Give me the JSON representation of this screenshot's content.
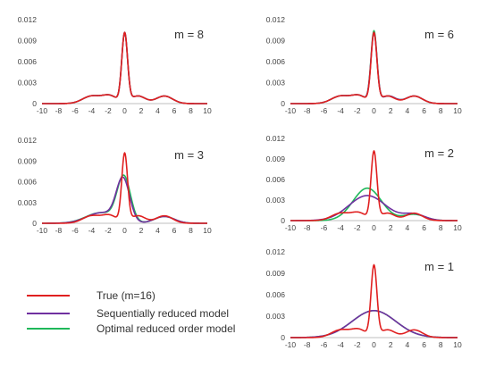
{
  "colors": {
    "true": "#e02020",
    "sequential": "#7030a0",
    "optimal": "#1fb85a",
    "axis": "#bfbfbf"
  },
  "legend": [
    {
      "key": "true",
      "label": "True (m=16)"
    },
    {
      "key": "sequential",
      "label": "Sequentially reduced model"
    },
    {
      "key": "optimal",
      "label": "Optimal reduced order model"
    }
  ],
  "chart_data": [
    {
      "type": "line",
      "title": "m = 8",
      "xlim": [
        -10,
        10
      ],
      "ylim": [
        0,
        0.012
      ],
      "xticks": [
        "-10",
        "-8",
        "-6",
        "-4",
        "-2",
        "0",
        "2",
        "4",
        "6",
        "8",
        "10"
      ],
      "yticks": [
        "0",
        "0.003",
        "0.006",
        "0.009",
        "0.012"
      ],
      "series": [
        {
          "key": "true",
          "name": "True (m=16)",
          "components": [
            [
              0.35,
              0.0,
              0.35
            ],
            [
              0.12,
              -4.0,
              1.1
            ],
            [
              0.11,
              4.8,
              1.0
            ],
            [
              0.1,
              -1.8,
              0.9
            ],
            [
              0.1,
              1.6,
              0.9
            ]
          ]
        },
        {
          "key": "sequential",
          "name": "Sequentially reduced model",
          "components": [
            [
              0.35,
              0.0,
              0.35
            ],
            [
              0.12,
              -4.0,
              1.1
            ],
            [
              0.11,
              4.8,
              1.0
            ],
            [
              0.1,
              -1.8,
              0.9
            ],
            [
              0.1,
              1.6,
              0.9
            ]
          ]
        },
        {
          "key": "optimal",
          "name": "Optimal reduced order model",
          "components": [
            [
              0.35,
              0.0,
              0.35
            ],
            [
              0.12,
              -4.0,
              1.1
            ],
            [
              0.11,
              4.8,
              1.0
            ],
            [
              0.1,
              -1.8,
              0.9
            ],
            [
              0.1,
              1.6,
              0.9
            ]
          ]
        }
      ]
    },
    {
      "type": "line",
      "title": "m = 6",
      "xlim": [
        -10,
        10
      ],
      "ylim": [
        0,
        0.012
      ],
      "xticks": [
        "-10",
        "-8",
        "-6",
        "-4",
        "-2",
        "0",
        "2",
        "4",
        "6",
        "8",
        "10"
      ],
      "yticks": [
        "0",
        "0.003",
        "0.006",
        "0.009",
        "0.012"
      ],
      "series": [
        {
          "key": "true",
          "name": "True (m=16)",
          "components": [
            [
              0.35,
              0.0,
              0.35
            ],
            [
              0.12,
              -4.0,
              1.1
            ],
            [
              0.11,
              4.8,
              1.0
            ],
            [
              0.1,
              -1.8,
              0.9
            ],
            [
              0.1,
              1.6,
              0.9
            ]
          ]
        },
        {
          "key": "sequential",
          "name": "Sequentially reduced model",
          "components": [
            [
              0.36,
              0.0,
              0.36
            ],
            [
              0.12,
              -4.0,
              1.1
            ],
            [
              0.11,
              4.8,
              1.0
            ],
            [
              0.1,
              -1.8,
              0.9
            ],
            [
              0.1,
              1.7,
              0.9
            ]
          ]
        },
        {
          "key": "optimal",
          "name": "Optimal reduced order model",
          "components": [
            [
              0.37,
              0.0,
              0.36
            ],
            [
              0.12,
              -4.0,
              1.1
            ],
            [
              0.11,
              4.8,
              1.0
            ],
            [
              0.1,
              -1.8,
              0.9
            ],
            [
              0.1,
              1.7,
              0.9
            ]
          ]
        }
      ]
    },
    {
      "type": "line",
      "title": "m = 3",
      "xlim": [
        -10,
        10
      ],
      "ylim": [
        0,
        0.012
      ],
      "xticks": [
        "-10",
        "-8",
        "-6",
        "-4",
        "-2",
        "0",
        "2",
        "4",
        "6",
        "8",
        "10"
      ],
      "yticks": [
        "0",
        "0.003",
        "0.006",
        "0.009",
        "0.012"
      ],
      "series": [
        {
          "key": "true",
          "name": "True (m=16)",
          "components": [
            [
              0.35,
              0.0,
              0.35
            ],
            [
              0.12,
              -4.0,
              1.1
            ],
            [
              0.11,
              4.8,
              1.0
            ],
            [
              0.1,
              -1.8,
              0.9
            ],
            [
              0.1,
              1.6,
              0.9
            ]
          ]
        },
        {
          "key": "sequential",
          "name": "Sequentially reduced model",
          "components": [
            [
              0.5,
              -0.2,
              0.8
            ],
            [
              0.28,
              -2.8,
              1.8
            ],
            [
              0.12,
              4.8,
              1.2
            ]
          ]
        },
        {
          "key": "optimal",
          "name": "Optimal reduced order model",
          "components": [
            [
              0.53,
              -0.1,
              0.8
            ],
            [
              0.28,
              -2.9,
              1.8
            ],
            [
              0.12,
              4.8,
              1.2
            ]
          ]
        }
      ]
    },
    {
      "type": "line",
      "title": "m = 2",
      "xlim": [
        -10,
        10
      ],
      "ylim": [
        0,
        0.012
      ],
      "xticks": [
        "-10",
        "-8",
        "-6",
        "-4",
        "-2",
        "0",
        "2",
        "4",
        "6",
        "8",
        "10"
      ],
      "yticks": [
        "0",
        "0.003",
        "0.006",
        "0.009",
        "0.012"
      ],
      "series": [
        {
          "key": "true",
          "name": "True (m=16)",
          "components": [
            [
              0.35,
              0.0,
              0.35
            ],
            [
              0.12,
              -4.0,
              1.1
            ],
            [
              0.11,
              4.8,
              1.0
            ],
            [
              0.1,
              -1.8,
              0.9
            ],
            [
              0.1,
              1.6,
              0.9
            ]
          ]
        },
        {
          "key": "sequential",
          "name": "Sequentially reduced model",
          "components": [
            [
              0.82,
              -0.8,
              2.2
            ],
            [
              0.12,
              4.8,
              1.3
            ]
          ]
        },
        {
          "key": "optimal",
          "name": "Optimal reduced order model",
          "components": [
            [
              0.82,
              -0.8,
              1.7
            ],
            [
              0.12,
              4.8,
              1.3
            ]
          ]
        }
      ]
    },
    {
      "type": "line",
      "title": "m = 1",
      "xlim": [
        -10,
        10
      ],
      "ylim": [
        0,
        0.012
      ],
      "xticks": [
        "-10",
        "-8",
        "-6",
        "-4",
        "-2",
        "0",
        "2",
        "4",
        "6",
        "8",
        "10"
      ],
      "yticks": [
        "0",
        "0.003",
        "0.006",
        "0.009",
        "0.012"
      ],
      "series": [
        {
          "key": "true",
          "name": "True (m=16)",
          "components": [
            [
              0.35,
              0.0,
              0.35
            ],
            [
              0.12,
              -4.0,
              1.1
            ],
            [
              0.11,
              4.8,
              1.0
            ],
            [
              0.1,
              -1.8,
              0.9
            ],
            [
              0.1,
              1.6,
              0.9
            ]
          ]
        },
        {
          "key": "sequential",
          "name": "Sequentially reduced model",
          "components": [
            [
              1.0,
              0.0,
              2.6
            ]
          ]
        },
        {
          "key": "optimal",
          "name": "Optimal reduced order model",
          "components": [
            [
              1.0,
              0.0,
              2.6
            ]
          ]
        }
      ]
    }
  ]
}
